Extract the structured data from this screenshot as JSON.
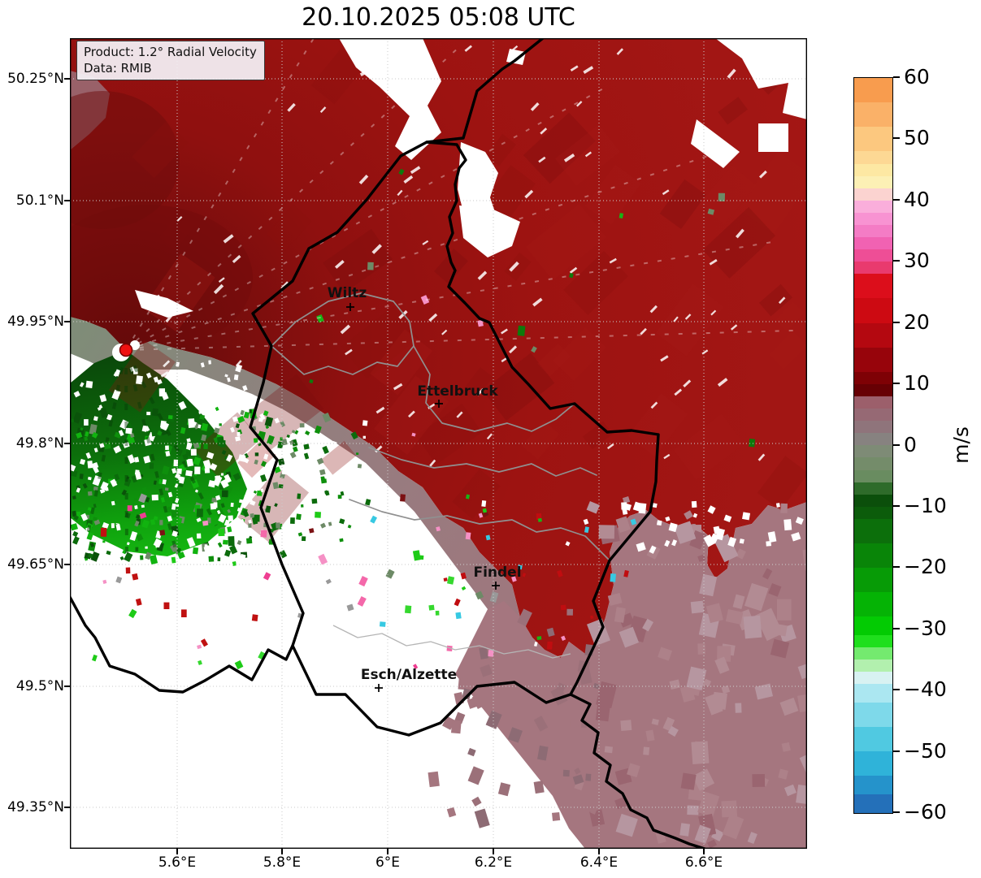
{
  "title": "20.10.2025 05:08 UTC",
  "info_box": {
    "line1": "Product: 1.2° Radial Velocity",
    "line2": "Data: RMIB"
  },
  "axes": {
    "lat_ticks": [
      {
        "label": "50.25°N"
      },
      {
        "label": "50.1°N"
      },
      {
        "label": "49.95°N"
      },
      {
        "label": "49.8°N"
      },
      {
        "label": "49.65°N"
      },
      {
        "label": "49.5°N"
      },
      {
        "label": "49.35°N"
      }
    ],
    "lon_ticks": [
      {
        "label": "5.6°E"
      },
      {
        "label": "5.8°E"
      },
      {
        "label": "6°E"
      },
      {
        "label": "6.2°E"
      },
      {
        "label": "6.4°E"
      },
      {
        "label": "6.6°E"
      }
    ]
  },
  "cities": [
    {
      "name": "Wiltz"
    },
    {
      "name": "Ettelbruck"
    },
    {
      "name": "Findel"
    },
    {
      "name": "Esch/Alzette"
    }
  ],
  "colorbar": {
    "unit": "m/s",
    "vmax": 60,
    "vmin": -60,
    "ticks": [
      "60",
      "50",
      "40",
      "30",
      "20",
      "10",
      "0",
      "−10",
      "−20",
      "−30",
      "−40",
      "−50",
      "−60"
    ],
    "segments": [
      [
        60,
        56,
        "#f89c4e"
      ],
      [
        56,
        52,
        "#fab168"
      ],
      [
        52,
        48,
        "#fcc87f"
      ],
      [
        48,
        46,
        "#fdd894"
      ],
      [
        46,
        44,
        "#fde8a3"
      ],
      [
        44,
        42,
        "#fcf0b5"
      ],
      [
        42,
        40,
        "#fbd3d0"
      ],
      [
        40,
        38,
        "#faaedb"
      ],
      [
        38,
        36,
        "#f893d2"
      ],
      [
        36,
        34,
        "#f47cc5"
      ],
      [
        34,
        32,
        "#f162b2"
      ],
      [
        32,
        30,
        "#ee4e96"
      ],
      [
        30,
        28,
        "#e93a6e"
      ],
      [
        28,
        24,
        "#dc0e1b"
      ],
      [
        24,
        20,
        "#cd0a12"
      ],
      [
        20,
        16,
        "#b40810"
      ],
      [
        16,
        12,
        "#97040b"
      ],
      [
        12,
        10,
        "#7e0105"
      ],
      [
        10,
        8,
        "#670004"
      ],
      [
        8,
        6,
        "#9c5f6b"
      ],
      [
        6,
        4,
        "#966974"
      ],
      [
        4,
        2,
        "#8f747b"
      ],
      [
        2,
        0,
        "#878280"
      ],
      [
        0,
        -2,
        "#7e8b76"
      ],
      [
        -2,
        -4,
        "#748c6a"
      ],
      [
        -4,
        -6,
        "#698c60"
      ],
      [
        -6,
        -8,
        "#2e6b2a"
      ],
      [
        -8,
        -10,
        "#0b4f0b"
      ],
      [
        -10,
        -12,
        "#0c5c0b"
      ],
      [
        -12,
        -16,
        "#0c6f0b"
      ],
      [
        -16,
        -20,
        "#098508"
      ],
      [
        -20,
        -24,
        "#079b06"
      ],
      [
        -24,
        -28,
        "#05b305"
      ],
      [
        -28,
        -31,
        "#03cb03"
      ],
      [
        -31,
        -33,
        "#1fdf1d"
      ],
      [
        -33,
        -35,
        "#74ea6f"
      ],
      [
        -35,
        -37,
        "#b2f0ae"
      ],
      [
        -37,
        -39,
        "#d8f2f2"
      ],
      [
        -39,
        -42,
        "#abe7f1"
      ],
      [
        -42,
        -46,
        "#7ed9ea"
      ],
      [
        -46,
        -50,
        "#50c9e1"
      ],
      [
        -50,
        -54,
        "#2fb3d9"
      ],
      [
        -54,
        -57,
        "#2593cb"
      ],
      [
        -57,
        -60,
        "#2470b9"
      ]
    ]
  },
  "map": {
    "colors": {
      "outbound_red": "#9d1211",
      "dark_red_low_positive": "#670004",
      "mauve_low_positive": "#a5767f",
      "near_zero_gray": "#87827c",
      "inbound_green": "#0e7d0c",
      "no_data_white": "#ffffff",
      "radar_dot": "#ee1111",
      "country_border": "#000000",
      "canton_border": "#909090",
      "gridline": "#cccccc"
    }
  }
}
